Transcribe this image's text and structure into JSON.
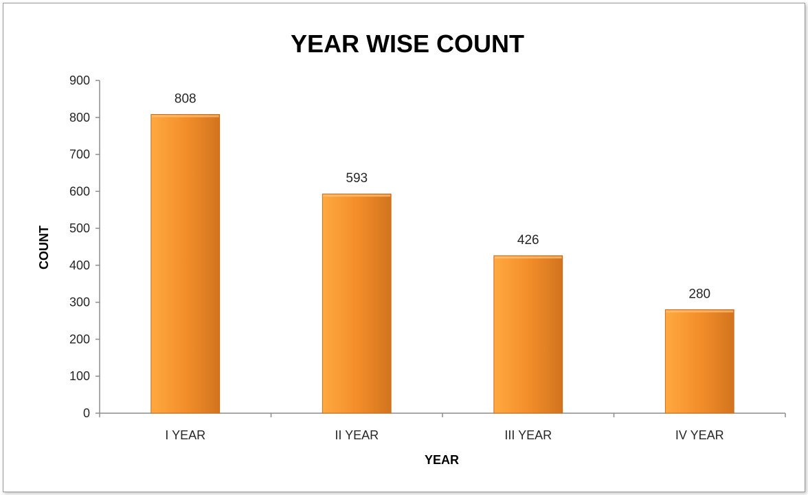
{
  "chart_data": {
    "type": "bar",
    "title": "YEAR WISE COUNT",
    "xlabel": "YEAR",
    "ylabel": "COUNT",
    "categories": [
      "I YEAR",
      "II YEAR",
      "III YEAR",
      "IV YEAR"
    ],
    "values": [
      808,
      593,
      426,
      280
    ],
    "ylim": [
      0,
      900
    ],
    "yticks": [
      0,
      100,
      200,
      300,
      400,
      500,
      600,
      700,
      800,
      900
    ],
    "data_labels": true,
    "grid": false,
    "legend": "none",
    "colors": {
      "bar_light": "#FFA940",
      "bar_mid": "#F38E2A",
      "bar_dark": "#D2741E",
      "axis": "#8C8C8C"
    }
  }
}
